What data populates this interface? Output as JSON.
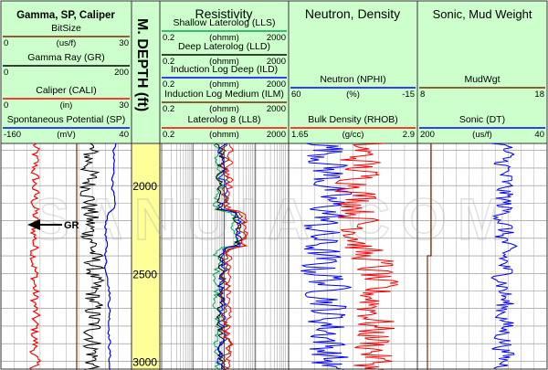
{
  "chart_data": {
    "type": "line",
    "depth_axis": {
      "label": "M. DEPTH (ft)",
      "ticks": [
        2000,
        2500,
        3000
      ],
      "range": [
        1760,
        3050
      ]
    },
    "tracks": [
      {
        "title": "Gamma, SP, Caliper",
        "curves": [
          {
            "name": "BitSize",
            "unit": "(us/f)",
            "min": "0",
            "max": "30",
            "color": "#7a2a00"
          },
          {
            "name": "Gamma Ray (GR)",
            "unit": "",
            "min": "0",
            "max": "200",
            "color": "#000000"
          },
          {
            "name": "Caliper (CALI)",
            "unit": "(in)",
            "min": "0",
            "max": "30",
            "color": "#ff0000"
          },
          {
            "name": "Spontaneous Potential (SP)",
            "unit": "(mV)",
            "min": "-160",
            "max": "40",
            "color": "#0000ff"
          }
        ]
      },
      {
        "title": "Resistivity",
        "curves": [
          {
            "name": "Shallow Laterolog (LLS)",
            "unit": "(ohmm)",
            "min": "0.2",
            "max": "2000",
            "color": "#00aa55"
          },
          {
            "name": "Deep Laterolog (LLD)",
            "unit": "(ohmm)",
            "min": "0.2",
            "max": "2000",
            "color": "#000000"
          },
          {
            "name": "Induction Log Deep (ILD)",
            "unit": "(ohmm)",
            "min": "0.2",
            "max": "2000",
            "color": "#0000ff"
          },
          {
            "name": "Induction Log Medium (ILM)",
            "unit": "(ohmm)",
            "min": "0.2",
            "max": "2000",
            "color": "#7a2a00"
          },
          {
            "name": "Laterolog 8 (LL8)",
            "unit": "(ohmm)",
            "min": "0.2",
            "max": "2000",
            "color": "#ff0000"
          }
        ]
      },
      {
        "title": "Neutron, Density",
        "curves": [
          {
            "name": "Neutron (NPHI)",
            "unit": "(%)",
            "min": "60",
            "max": "-15",
            "color": "#0000ff"
          },
          {
            "name": "Bulk Density (RHOB)",
            "unit": "(g/cc)",
            "min": "1.65",
            "max": "2.9",
            "color": "#ff0000"
          }
        ]
      },
      {
        "title": "Sonic,  Mud Weight",
        "curves": [
          {
            "name": "MudWgt",
            "unit": "",
            "min": "8",
            "max": "18",
            "color": "#7a2a00"
          },
          {
            "name": "Sonic (DT)",
            "unit": "(us/f)",
            "min": "200",
            "max": "40",
            "color": "#0000ff"
          }
        ]
      }
    ],
    "annotations": [
      {
        "text": "GR",
        "depth": 1870
      }
    ],
    "watermark": "SANUIA.COM"
  },
  "colors": {
    "header_bg": "#ccffcc",
    "depth_track": "#ffff99",
    "grid": "#888888"
  }
}
